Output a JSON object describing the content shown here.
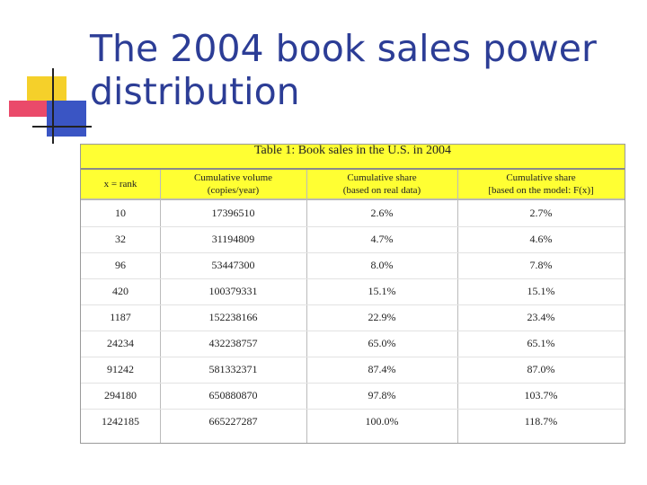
{
  "slide": {
    "title": "The 2004 book sales power distribution"
  },
  "table": {
    "caption": "Table 1: Book sales in the U.S. in 2004",
    "headers": [
      "x = rank",
      "Cumulative volume\n(copies/year)",
      "Cumulative share\n(based on real data)",
      "Cumulative share\n[based on the model: F(x)]"
    ],
    "rows": [
      [
        "10",
        "17396510",
        "2.6%",
        "2.7%"
      ],
      [
        "32",
        "31194809",
        "4.7%",
        "4.6%"
      ],
      [
        "96",
        "53447300",
        "8.0%",
        "7.8%"
      ],
      [
        "420",
        "100379331",
        "15.1%",
        "15.1%"
      ],
      [
        "1187",
        "152238166",
        "22.9%",
        "23.4%"
      ],
      [
        "24234",
        "432238757",
        "65.0%",
        "65.1%"
      ],
      [
        "91242",
        "581332371",
        "87.4%",
        "87.0%"
      ],
      [
        "294180",
        "650880870",
        "97.8%",
        "103.7%"
      ],
      [
        "1242185",
        "665227287",
        "100.0%",
        "118.7%"
      ]
    ]
  }
}
